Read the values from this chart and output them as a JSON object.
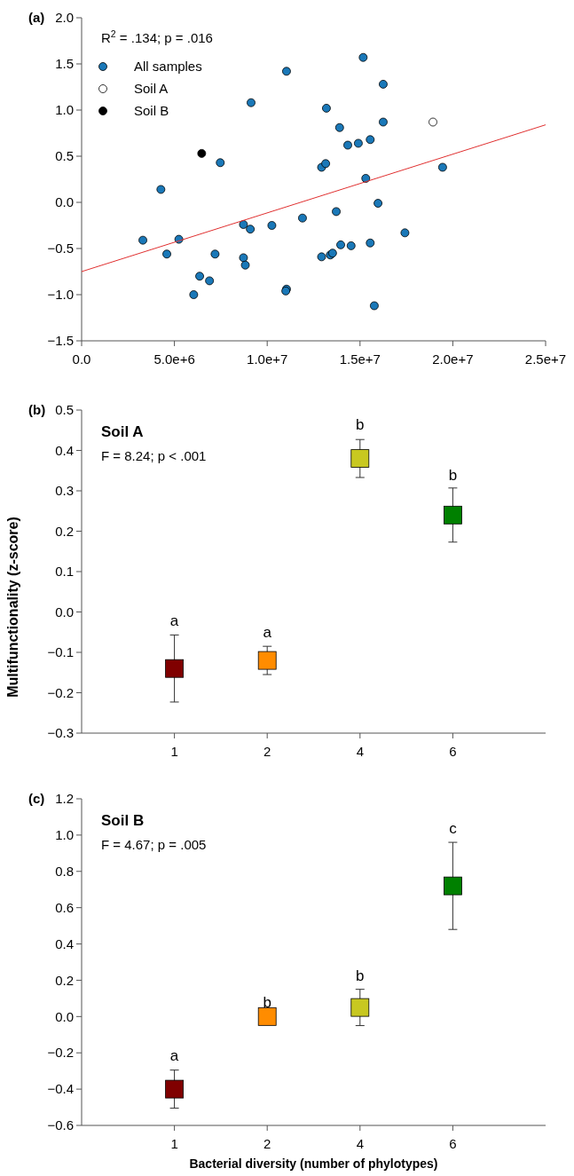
{
  "chart_data": [
    {
      "type": "scatter",
      "title": "(a)",
      "annotations": [
        "R$^{2}$ = .134; p = .016"
      ],
      "legend": "top left",
      "marker": "circle",
      "xlim": [
        0,
        25000000
      ],
      "xticks": [
        {
          "value": 0,
          "label": "0.0"
        },
        {
          "value": 5000000,
          "label": "5.0e+6"
        },
        {
          "value": 10000000,
          "label": "1.0e+7"
        },
        {
          "value": 15000000,
          "label": "1.5e+7"
        },
        {
          "value": 20000000,
          "label": "2.0e+7"
        },
        {
          "value": 25000000,
          "label": "2.5e+7"
        }
      ],
      "ylim": [
        -1.5,
        2
      ],
      "yticks": [
        {
          "value": -1.5,
          "label": "−1.5"
        },
        {
          "value": -1,
          "label": "−1.0"
        },
        {
          "value": -0.5,
          "label": "−0.5"
        },
        {
          "value": 0,
          "label": "0.0"
        },
        {
          "value": 0.5,
          "label": "0.5"
        },
        {
          "value": 1,
          "label": "1.0"
        },
        {
          "value": 1.5,
          "label": "1.5"
        },
        {
          "value": 2,
          "label": "2.0"
        }
      ],
      "series": [
        {
          "name": "All samples",
          "color": "#1a78b8",
          "x": [
            3300000,
            4270000,
            4590000,
            5240000,
            6040000,
            6360000,
            6890000,
            7190000,
            7470000,
            8720000,
            9090000,
            8720000,
            8820000,
            9130000,
            10250000,
            11040000,
            11040000,
            11000000,
            11900000,
            12930000,
            13150000,
            12930000,
            13190000,
            13400000,
            13520000,
            13720000,
            13900000,
            13960000,
            14340000,
            14520000,
            14910000,
            15170000,
            15310000,
            15550000,
            15550000,
            15770000,
            15970000,
            16250000,
            16250000,
            17420000,
            19450000
          ],
          "values": [
            -0.41,
            0.14,
            -0.56,
            -0.4,
            -1.0,
            -0.8,
            -0.85,
            -0.56,
            0.43,
            -0.24,
            -0.29,
            -0.6,
            -0.68,
            1.08,
            -0.25,
            1.42,
            -0.94,
            -0.96,
            -0.17,
            0.38,
            0.42,
            -0.59,
            1.02,
            -0.57,
            -0.55,
            -0.1,
            0.81,
            -0.46,
            0.62,
            -0.47,
            0.64,
            1.57,
            0.26,
            0.68,
            -0.44,
            -1.12,
            -0.01,
            1.28,
            0.87,
            -0.33,
            0.38
          ]
        },
        {
          "name": "Soil A",
          "color": "#ffffff",
          "x": [
            18930000
          ],
          "values": [
            0.87
          ]
        },
        {
          "name": "Soil B",
          "color": "#000000",
          "x": [
            6470000
          ],
          "values": [
            0.53
          ]
        },
        {
          "type": "line",
          "marker": "none",
          "color": "#e03030",
          "x": [
            0,
            25000000
          ],
          "values": [
            -0.75,
            0.84
          ]
        }
      ]
    },
    {
      "type": "scatter",
      "title": "(b)",
      "subtitle": "Soil A",
      "ylabel": "Multifunctionality (z-score)",
      "marker": "square",
      "annotations": [
        "F = 8.24; p < .001",
        {
          "text": "a",
          "x": "1",
          "y": -0.057
        },
        {
          "text": "a",
          "x": "2",
          "y": -0.085
        },
        {
          "text": "b",
          "x": "4",
          "y": 0.43
        },
        {
          "text": "b",
          "x": "6",
          "y": 0.305
        }
      ],
      "categories": [
        "1",
        "2",
        "4",
        "6"
      ],
      "ylim": [
        -0.3,
        0.5
      ],
      "yticks": [
        {
          "value": -0.3,
          "label": "−0.3"
        },
        {
          "value": -0.2,
          "label": "−0.2"
        },
        {
          "value": -0.1,
          "label": "−0.1"
        },
        {
          "value": 0,
          "label": "0.0"
        },
        {
          "value": 0.1,
          "label": "0.1"
        },
        {
          "value": 0.2,
          "label": "0.2"
        },
        {
          "value": 0.3,
          "label": "0.3"
        },
        {
          "value": 0.4,
          "label": "0.4"
        },
        {
          "value": 0.5,
          "label": "0.5"
        }
      ],
      "values": [
        -0.14,
        -0.12,
        0.38,
        0.24
      ],
      "errors": [
        0.083,
        0.035,
        0.047,
        0.067
      ],
      "colors": [
        "#800000",
        "#ff8c00",
        "#c8c820",
        "#008000"
      ]
    },
    {
      "type": "scatter",
      "title": "(c)",
      "subtitle": "Soil B",
      "xlabel": "Bacterial diversity (number of phylotypes)",
      "marker": "square",
      "annotations": [
        "F = 4.67; p = .005",
        {
          "text": "a",
          "x": "1",
          "y": -0.29
        },
        {
          "text": "b",
          "x": "2",
          "y": 0.0
        },
        {
          "text": "b",
          "x": "4",
          "y": 0.15
        },
        {
          "text": "c",
          "x": "6",
          "y": 0.96
        }
      ],
      "categories": [
        "1",
        "2",
        "4",
        "6"
      ],
      "ylim": [
        -0.6,
        1.2
      ],
      "yticks": [
        {
          "value": -0.6,
          "label": "−0.6"
        },
        {
          "value": -0.4,
          "label": "−0.4"
        },
        {
          "value": -0.2,
          "label": "−0.2"
        },
        {
          "value": 0,
          "label": "0.0"
        },
        {
          "value": 0.2,
          "label": "0.2"
        },
        {
          "value": 0.4,
          "label": "0.4"
        },
        {
          "value": 0.6,
          "label": "0.6"
        },
        {
          "value": 0.8,
          "label": "0.8"
        },
        {
          "value": 1,
          "label": "1.0"
        },
        {
          "value": 1.2,
          "label": "1.2"
        }
      ],
      "values": [
        -0.4,
        0.0,
        0.05,
        0.72
      ],
      "errors": [
        0.105,
        null,
        0.1,
        0.24
      ],
      "colors": [
        "#800000",
        "#ff8c00",
        "#c8c820",
        "#008000"
      ]
    }
  ]
}
